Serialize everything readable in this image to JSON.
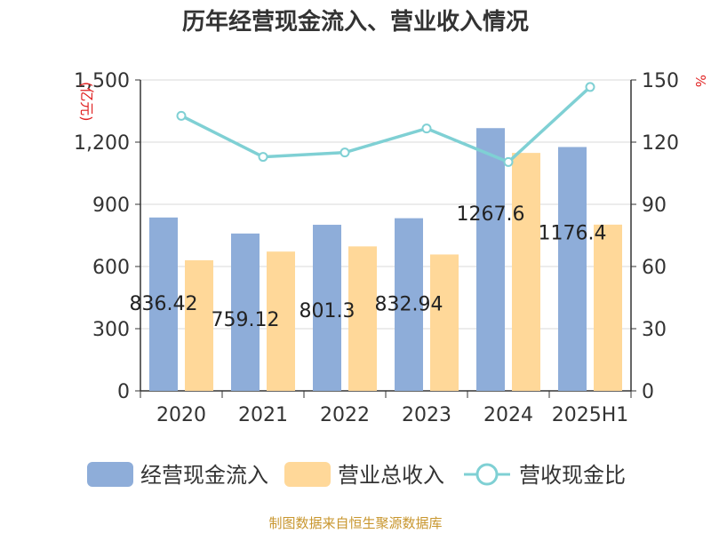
{
  "page": {
    "title": "历年经营现金流入、营业收入情况",
    "source": "制图数据来自恒生聚源数据库"
  },
  "colors": {
    "cash_inflow": "#8eadd9",
    "revenue": "#ffd899",
    "ratio_line": "#7fd0d4",
    "unit_text": "#e02020",
    "axis": "#333333",
    "grid": "#d9d9d9"
  },
  "chart_data": {
    "type": "bar",
    "categories": [
      "2020",
      "2021",
      "2022",
      "2023",
      "2024",
      "2025H1"
    ],
    "y_left": {
      "unit": "(亿元)",
      "ylim": [
        0,
        1500
      ],
      "ticks": [
        "0",
        "300",
        "600",
        "900",
        "1,200",
        "1,500"
      ]
    },
    "y_right": {
      "unit": "%",
      "ylim": [
        0,
        150
      ],
      "ticks": [
        "0",
        "30",
        "60",
        "90",
        "120",
        "150"
      ]
    },
    "grid": true,
    "legend_position": "bottom",
    "series": [
      {
        "name": "经营现金流入",
        "type": "bar",
        "axis": "left",
        "values": [
          836.42,
          759.12,
          801.3,
          832.94,
          1267.6,
          1176.4
        ],
        "labels": [
          "836.42",
          "759.12",
          "801.3",
          "832.94",
          "1267.6",
          "1176.4"
        ]
      },
      {
        "name": "营业总收入",
        "type": "bar",
        "axis": "left",
        "values": [
          630,
          672,
          697,
          658,
          1148,
          802
        ]
      },
      {
        "name": "营收现金比",
        "type": "line",
        "axis": "right",
        "values": [
          132.7,
          112.9,
          115.0,
          126.6,
          110.4,
          146.6
        ]
      }
    ]
  }
}
